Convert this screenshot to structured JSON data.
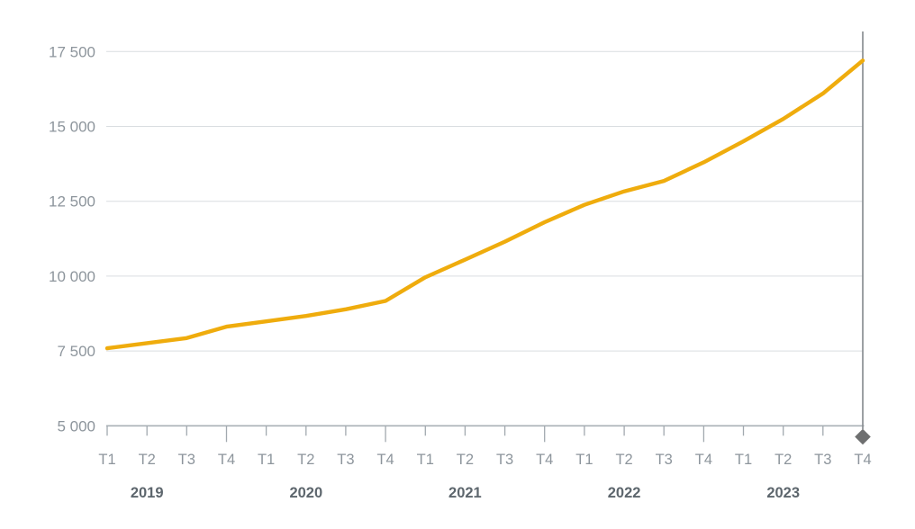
{
  "chart_data": {
    "type": "line",
    "categories": [
      {
        "year": "2019",
        "quarters": [
          "T1",
          "T2",
          "T3",
          "T4"
        ]
      },
      {
        "year": "2020",
        "quarters": [
          "T1",
          "T2",
          "T3",
          "T4"
        ]
      },
      {
        "year": "2021",
        "quarters": [
          "T1",
          "T2",
          "T3",
          "T4"
        ]
      },
      {
        "year": "2022",
        "quarters": [
          "T1",
          "T2",
          "T3",
          "T4"
        ]
      },
      {
        "year": "2023",
        "quarters": [
          "T1",
          "T2",
          "T3",
          "T4"
        ]
      }
    ],
    "series": [
      {
        "color": "#efac0d",
        "values": [
          7590,
          7760,
          7930,
          8310,
          8490,
          8670,
          8890,
          9170,
          9960,
          10550,
          11150,
          11800,
          12380,
          12830,
          13180,
          13800,
          14500,
          15250,
          16100,
          17200
        ]
      }
    ],
    "y_ticks": [
      {
        "value": 5000,
        "label": "5 000"
      },
      {
        "value": 7500,
        "label": "7 500"
      },
      {
        "value": 10000,
        "label": "10 000"
      },
      {
        "value": 12500,
        "label": "12 500"
      },
      {
        "value": 15000,
        "label": "15 000"
      },
      {
        "value": 17500,
        "label": "17 500"
      }
    ],
    "ylim": [
      5000,
      18200
    ],
    "grid": "horizontal-only",
    "legend": "none",
    "selected_point": {
      "index": 19,
      "year": "2023",
      "quarter": "T4",
      "value": 17200,
      "marker": "diamond"
    }
  },
  "colors": {
    "series_line": "#efac0d",
    "gridline": "#d9dde0",
    "axis": "#a9b0b6",
    "tick": "#a2a9af",
    "quarter_label": "#8d959c",
    "year_label": "#5d666d",
    "y_label": "#8d959c",
    "indicator_line": "#8a8f93",
    "marker": "#6e6f70",
    "background": "#ffffff"
  }
}
